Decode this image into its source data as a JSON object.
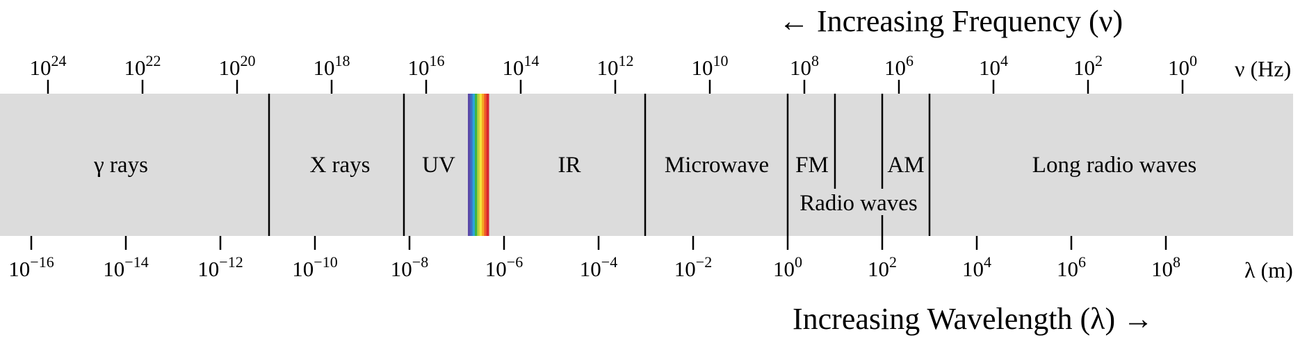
{
  "frequency_axis": {
    "title": "← Increasing Frequency (ν)",
    "unit_label": "ν (Hz)",
    "base": "10",
    "exponents": [
      "24",
      "22",
      "20",
      "18",
      "16",
      "14",
      "12",
      "10",
      "8",
      "6",
      "4",
      "2",
      "0"
    ]
  },
  "wavelength_axis": {
    "title": "Increasing Wavelength (λ) →",
    "unit_label": "λ (m)",
    "base": "10",
    "exponents": [
      "−16",
      "−14",
      "−12",
      "−10",
      "−8",
      "−6",
      "−4",
      "−2",
      "0",
      "2",
      "4",
      "6",
      "8"
    ]
  },
  "bands": {
    "gamma": "γ rays",
    "xray": "X rays",
    "uv": "UV",
    "ir": "IR",
    "microwave": "Microwave",
    "fm": "FM",
    "am": "AM",
    "radio": "Radio waves",
    "long_radio": "Long radio waves"
  },
  "colors": {
    "band_fill": "#dcdcdc",
    "divider": "#000000",
    "visible_spectrum": [
      "#5b4aa8",
      "#3d6fc4",
      "#2aa6d8",
      "#3cb44a",
      "#b7d13a",
      "#f2e33a",
      "#f5a623",
      "#ef5a28",
      "#d7262e"
    ]
  }
}
